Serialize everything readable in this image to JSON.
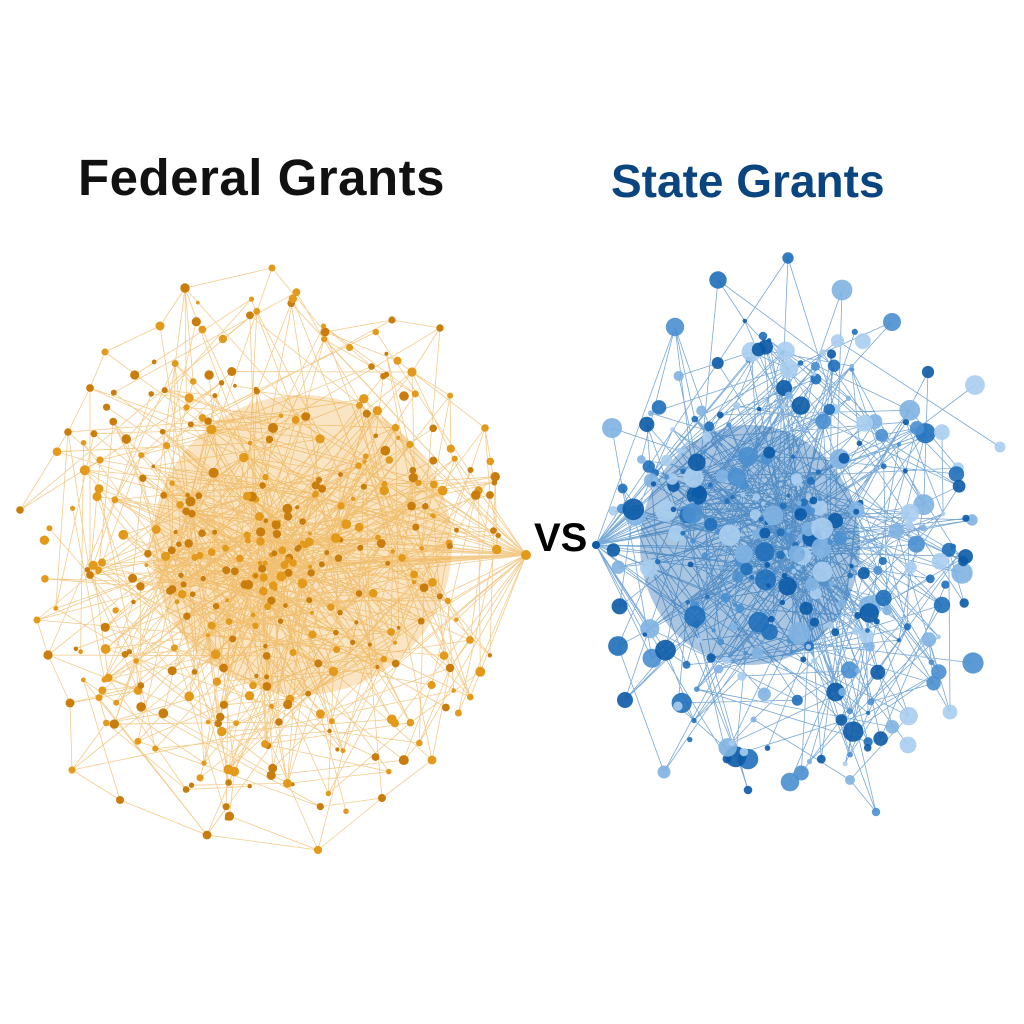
{
  "left": {
    "title": "Federal Grants",
    "title_color": "#111111",
    "node_color": "#e39a1a",
    "node_dark": "#c97d0c",
    "edge_color": "#e9a12c"
  },
  "right": {
    "title": "State Grants",
    "title_color": "#0b4580",
    "node_colors": [
      "#0b5aa6",
      "#1f6fba",
      "#4a8fd0",
      "#7fb2e2",
      "#a9cdee"
    ],
    "edge_color": "#1f6fba"
  },
  "connector": "VS"
}
